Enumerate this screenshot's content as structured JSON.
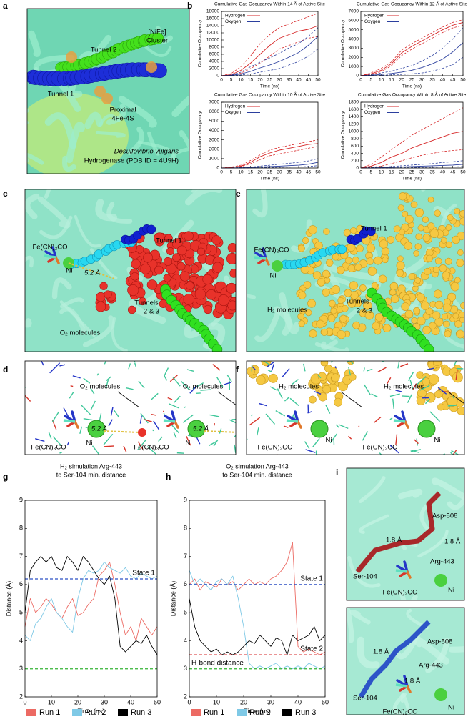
{
  "panel_letters": [
    "a",
    "b",
    "c",
    "d",
    "e",
    "f",
    "g",
    "h",
    "i"
  ],
  "panel_a": {
    "tunnel_2": "Tunnel 2",
    "nife_cluster": [
      "[NiFe]",
      "Cluster"
    ],
    "tunnel_1": "Tunnel 1",
    "proximal": [
      "Proximal",
      "4Fe-4S"
    ],
    "species": "Desulfovibrio vulgaris",
    "protein": "Hydrogenase (PDB ID = 4U9H)"
  },
  "panel_c": {
    "cofactor": "Fe(CN)₂CO",
    "ni": "Ni",
    "distance": "5.2 Å",
    "tunnel_1": "Tunnel 1",
    "tunnels_2_3": [
      "Tunnels",
      "2 & 3"
    ],
    "molecules": "O₂ molecules"
  },
  "panel_e": {
    "cofactor": "Fe(CN)₂CO",
    "ni": "Ni",
    "tunnel_1": "Tunnel 1",
    "tunnels_2_3": [
      "Tunnels",
      "2 & 3"
    ],
    "molecules": "H₂ molecules"
  },
  "panel_d": {
    "views": [
      {
        "molecules": "O₂ molecules",
        "distance": "5.2 Å",
        "cofactor": "Fe(CN)₃CO",
        "ni": "Ni"
      },
      {
        "molecules": "O₂ molecules",
        "distance": "5.2 Å",
        "cofactor": "Fe(CN)₃CO",
        "ni": "Ni"
      }
    ]
  },
  "panel_f": {
    "views": [
      {
        "molecules": "H₂ molecules",
        "cofactor": "Fe(CN)₂CO",
        "ni": "Ni"
      },
      {
        "molecules": "H₂ molecules",
        "cofactor": "Fe(CN)₂CO",
        "ni": "Ni"
      }
    ]
  },
  "panel_i": {
    "views": [
      {
        "asp": "Asp-508",
        "bond_1": "1.8 Å",
        "bond_2": "1.8 Å",
        "arg": "Arg-443",
        "ser": "Ser-104",
        "cofactor": "Fe(CN)₂CO",
        "ni": "Ni"
      },
      {
        "asp": "Asp-508",
        "bond_1": "1.8 Å",
        "arg": "Arg-443",
        "bond_2": "1.8 Å",
        "ser": "Ser-104",
        "cofactor": "Fe(CN)₂CO",
        "ni": "Ni"
      }
    ]
  },
  "chart_data": [
    {
      "type": "line",
      "title": "Cumulative Gas Occupancy Within 14 Å of Active Site",
      "x_label": "Time (ns)",
      "y_label": "Cumulative Occupancy",
      "x": [
        0,
        5,
        10,
        15,
        20,
        25,
        30,
        35,
        40,
        45,
        50
      ],
      "xlim": [
        0,
        50
      ],
      "xticks": [
        0,
        5,
        10,
        15,
        20,
        25,
        30,
        35,
        40,
        45,
        50
      ],
      "ylim": [
        0,
        18000
      ],
      "yticks": [
        0,
        2000,
        4000,
        6000,
        8000,
        10000,
        12000,
        14000,
        16000,
        18000
      ],
      "series": [
        {
          "name": "Hydrogen",
          "color": "#d62728",
          "values": [
            0,
            300,
            1500,
            3500,
            6000,
            8500,
            10500,
            11500,
            12500,
            13000,
            14000
          ],
          "upper": [
            0,
            600,
            2500,
            5500,
            9000,
            11500,
            13500,
            14500,
            15500,
            16500,
            17500
          ],
          "lower": [
            0,
            100,
            700,
            2000,
            3500,
            5500,
            7500,
            8500,
            9500,
            10500,
            11000
          ]
        },
        {
          "name": "Oxygen",
          "color": "#2b3f9e",
          "values": [
            0,
            100,
            500,
            1200,
            2200,
            3000,
            4000,
            5200,
            6500,
            8500,
            11000
          ],
          "upper": [
            0,
            200,
            1000,
            2500,
            3800,
            5000,
            6300,
            7800,
            9000,
            11000,
            13500
          ],
          "lower": [
            0,
            0,
            200,
            500,
            1000,
            1500,
            2000,
            3000,
            4000,
            5500,
            7500
          ]
        }
      ]
    },
    {
      "type": "line",
      "title": "Cumulative Gas Occupancy Within 12 Å of Active Site",
      "x_label": "Time (ns)",
      "y_label": "Cumulative Occupancy",
      "x": [
        0,
        5,
        10,
        15,
        20,
        25,
        30,
        35,
        40,
        45,
        50
      ],
      "xlim": [
        0,
        50
      ],
      "xticks": [
        0,
        5,
        10,
        15,
        20,
        25,
        30,
        35,
        40,
        45,
        50
      ],
      "ylim": [
        0,
        7000
      ],
      "yticks": [
        0,
        1000,
        2000,
        3000,
        4000,
        5000,
        6000,
        7000
      ],
      "series": [
        {
          "name": "Hydrogen",
          "color": "#d62728",
          "values": [
            0,
            200,
            600,
            1300,
            2500,
            3200,
            3800,
            4400,
            5000,
            5500,
            5800
          ],
          "upper": [
            0,
            300,
            800,
            1500,
            2800,
            3500,
            4100,
            4700,
            5300,
            5800,
            6100
          ],
          "lower": [
            0,
            100,
            450,
            1100,
            2200,
            2900,
            3500,
            4100,
            4700,
            5200,
            5500
          ]
        },
        {
          "name": "Oxygen",
          "color": "#2b3f9e",
          "values": [
            0,
            50,
            150,
            250,
            400,
            600,
            900,
            1300,
            1800,
            2600,
            3600
          ],
          "upper": [
            0,
            100,
            300,
            500,
            800,
            1100,
            1600,
            2200,
            3000,
            4000,
            5200
          ],
          "lower": [
            0,
            0,
            50,
            100,
            150,
            200,
            300,
            500,
            800,
            1200,
            2000
          ]
        }
      ]
    },
    {
      "type": "line",
      "title": "Cumulative Gas Occupancy Within 10 Å of Active Site",
      "x_label": "Time (ns)",
      "y_label": "Cumulative Occupancy",
      "x": [
        0,
        5,
        10,
        15,
        20,
        25,
        30,
        35,
        40,
        45,
        50
      ],
      "xlim": [
        0,
        50
      ],
      "xticks": [
        0,
        5,
        10,
        15,
        20,
        25,
        30,
        35,
        40,
        45,
        50
      ],
      "ylim": [
        0,
        7000
      ],
      "yticks": [
        0,
        1000,
        2000,
        3000,
        4000,
        5000,
        6000,
        7000
      ],
      "series": [
        {
          "name": "Hydrogen",
          "color": "#d62728",
          "values": [
            0,
            50,
            200,
            600,
            1200,
            1600,
            1900,
            2100,
            2300,
            2500,
            2600
          ],
          "upper": [
            0,
            100,
            300,
            800,
            1400,
            1900,
            2200,
            2400,
            2600,
            2800,
            3000
          ],
          "lower": [
            0,
            30,
            150,
            450,
            900,
            1300,
            1500,
            1700,
            1900,
            2100,
            2300
          ]
        },
        {
          "name": "Oxygen",
          "color": "#2b3f9e",
          "values": [
            0,
            0,
            20,
            50,
            100,
            150,
            200,
            250,
            300,
            400,
            600
          ],
          "upper": [
            0,
            10,
            50,
            100,
            200,
            300,
            400,
            500,
            600,
            750,
            1000
          ],
          "lower": [
            0,
            0,
            0,
            20,
            40,
            60,
            80,
            100,
            120,
            150,
            250
          ]
        }
      ]
    },
    {
      "type": "line",
      "title": "Cumulative Gas Occupancy Within 8 Å of Active Site",
      "x_label": "Time (ns)",
      "y_label": "Cumulative Occupancy",
      "x": [
        0,
        5,
        10,
        15,
        20,
        25,
        30,
        35,
        40,
        45,
        50
      ],
      "xlim": [
        0,
        50
      ],
      "xticks": [
        0,
        5,
        10,
        15,
        20,
        25,
        30,
        35,
        40,
        45,
        50
      ],
      "ylim": [
        0,
        1800
      ],
      "yticks": [
        0,
        200,
        400,
        600,
        800,
        1000,
        1200,
        1400,
        1600,
        1800
      ],
      "series": [
        {
          "name": "Hydrogen",
          "color": "#d62728",
          "values": [
            0,
            50,
            150,
            300,
            400,
            550,
            650,
            750,
            850,
            950,
            1000
          ],
          "upper": [
            0,
            100,
            300,
            500,
            700,
            900,
            1050,
            1200,
            1350,
            1500,
            1650
          ],
          "lower": [
            0,
            20,
            50,
            120,
            200,
            280,
            350,
            400,
            450,
            480,
            500
          ]
        },
        {
          "name": "Oxygen",
          "color": "#2b3f9e",
          "values": [
            0,
            0,
            10,
            20,
            30,
            40,
            50,
            60,
            70,
            80,
            100
          ],
          "upper": [
            0,
            10,
            20,
            40,
            60,
            80,
            100,
            120,
            150,
            170,
            200
          ],
          "lower": [
            0,
            0,
            0,
            0,
            10,
            10,
            20,
            20,
            30,
            30,
            40
          ]
        }
      ]
    },
    {
      "type": "line",
      "title": [
        "H₂ simulation Arg-443",
        "to Ser-104 min. distance"
      ],
      "x_label": "Time (ns)",
      "y_label": "Distance (Å)",
      "x": [
        0,
        2,
        4,
        6,
        8,
        10,
        12,
        14,
        16,
        18,
        20,
        22,
        24,
        26,
        28,
        30,
        32,
        34,
        36,
        38,
        40,
        42,
        44,
        46,
        48,
        50
      ],
      "xlim": [
        0,
        50
      ],
      "xticks": [
        0,
        10,
        20,
        30,
        40,
        50
      ],
      "ylim": [
        2,
        9
      ],
      "yticks": [
        2,
        3,
        4,
        5,
        6,
        7,
        8,
        9
      ],
      "hlines": [
        {
          "value": 6.2,
          "color": "#2b4fc4",
          "label": "State 1"
        },
        {
          "value": 3.0,
          "color": "#33b233"
        }
      ],
      "series": [
        {
          "name": "Run 1",
          "color": "#ec6a63",
          "values": [
            4.5,
            5.5,
            5.0,
            5.2,
            5.5,
            5.3,
            5.0,
            4.8,
            5.2,
            5.5,
            4.9,
            5.0,
            5.3,
            5.5,
            6.3,
            6.5,
            6.8,
            6.0,
            5.0,
            4.2,
            4.5,
            4.0,
            4.8,
            4.5,
            4.2,
            4.5
          ]
        },
        {
          "name": "Run 2",
          "color": "#7fc9e6",
          "values": [
            4.2,
            4.0,
            4.6,
            4.8,
            5.2,
            5.5,
            5.0,
            4.8,
            4.5,
            4.3,
            5.5,
            6.2,
            6.5,
            6.4,
            6.5,
            6.8,
            6.6,
            6.5,
            6.4,
            6.6,
            6.3,
            6.2,
            6.4,
            6.3,
            6.2,
            6.3
          ]
        },
        {
          "name": "Run 3",
          "color": "#000000",
          "values": [
            5.0,
            6.5,
            6.8,
            7.0,
            6.8,
            7.0,
            6.6,
            6.5,
            7.0,
            6.8,
            6.5,
            7.0,
            6.8,
            6.5,
            6.2,
            6.0,
            6.3,
            5.5,
            3.8,
            3.6,
            3.8,
            4.0,
            3.9,
            4.2,
            3.8,
            3.5
          ]
        }
      ]
    },
    {
      "type": "line",
      "title": [
        "O₂ simulation Arg-443",
        "to Ser-104 min. distance"
      ],
      "x_label": "Time (ns)",
      "y_label": "Distance (Å)",
      "x": [
        0,
        2,
        4,
        6,
        8,
        10,
        12,
        14,
        16,
        18,
        20,
        22,
        24,
        26,
        28,
        30,
        32,
        34,
        36,
        38,
        40,
        42,
        44,
        46,
        48,
        50
      ],
      "xlim": [
        0,
        50
      ],
      "xticks": [
        0,
        10,
        20,
        30,
        40,
        50
      ],
      "ylim": [
        2,
        9
      ],
      "yticks": [
        2,
        3,
        4,
        5,
        6,
        7,
        8,
        9
      ],
      "hlines": [
        {
          "value": 6.0,
          "color": "#2b4fc4",
          "label": "State 1"
        },
        {
          "value": 3.5,
          "color": "#d62728",
          "label": "State 2"
        },
        {
          "value": 3.0,
          "color": "#33b233",
          "label": "H-bond distance"
        }
      ],
      "series": [
        {
          "name": "Run 1",
          "color": "#ec6a63",
          "values": [
            6.0,
            6.2,
            5.8,
            6.1,
            6.0,
            5.9,
            6.2,
            6.0,
            6.1,
            5.8,
            6.0,
            6.2,
            6.0,
            6.1,
            6.0,
            6.2,
            6.3,
            6.5,
            6.8,
            7.5,
            3.8,
            3.6,
            3.7,
            3.6,
            3.5,
            3.6
          ]
        },
        {
          "name": "Run 2",
          "color": "#7fc9e6",
          "values": [
            6.5,
            6.0,
            6.2,
            6.0,
            5.8,
            6.1,
            6.2,
            6.0,
            6.3,
            5.5,
            4.5,
            3.2,
            3.0,
            3.1,
            3.0,
            3.1,
            3.2,
            3.0,
            3.1,
            3.0,
            3.1,
            3.0,
            3.2,
            3.1,
            3.0,
            3.1
          ]
        },
        {
          "name": "Run 3",
          "color": "#000000",
          "values": [
            5.5,
            4.5,
            4.0,
            3.8,
            3.6,
            3.7,
            3.5,
            3.6,
            3.5,
            3.6,
            3.8,
            4.0,
            3.9,
            4.2,
            4.0,
            3.8,
            4.1,
            4.0,
            3.5,
            4.2,
            4.0,
            4.1,
            4.2,
            4.5,
            4.0,
            4.2
          ]
        }
      ]
    }
  ]
}
